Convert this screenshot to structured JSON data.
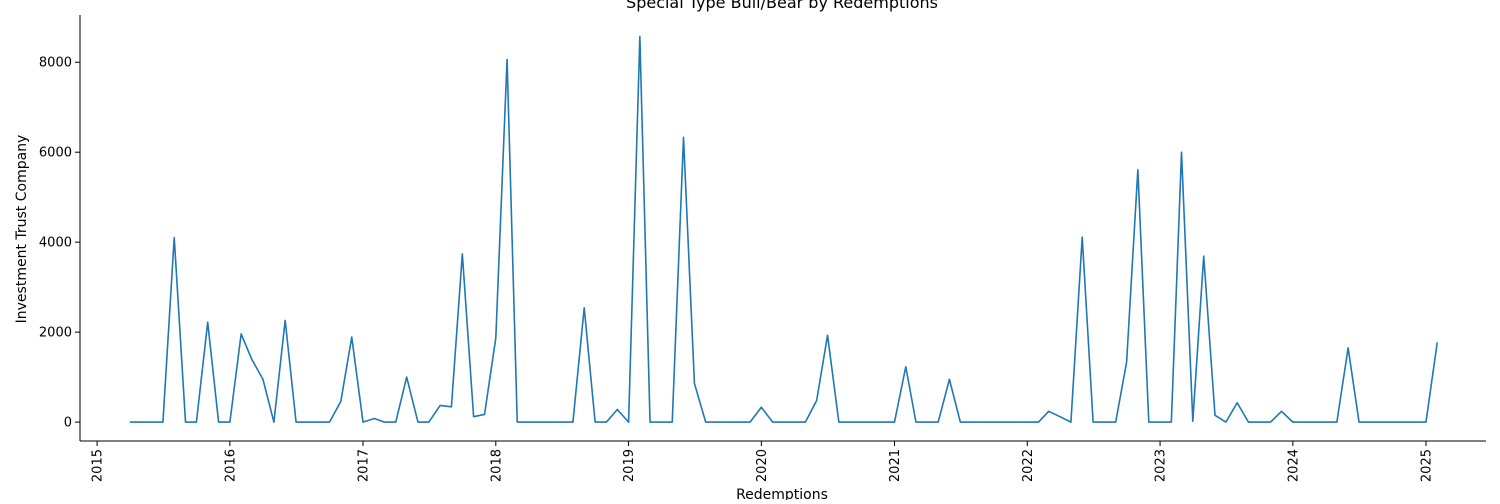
{
  "chart_data": {
    "type": "line",
    "title": "Special Type Bull/Bear by Redemptions",
    "xlabel": "Redemptions",
    "ylabel": "Investment Trust Company",
    "x_range": [
      "2014-11-15",
      "2025-06-15"
    ],
    "ylim": [
      -420,
      9050
    ],
    "x_ticks": [
      "2015",
      "2016",
      "2017",
      "2018",
      "2019",
      "2020",
      "2021",
      "2022",
      "2023",
      "2024",
      "2025"
    ],
    "y_ticks": [
      0,
      2000,
      4000,
      6000,
      8000
    ],
    "grid": false,
    "legend": "none",
    "line_color": "#1f77b4",
    "series": [
      {
        "x": [
          "2015-04-01",
          "2015-05-01",
          "2015-06-01",
          "2015-07-01",
          "2015-08-01",
          "2015-09-01",
          "2015-10-01",
          "2015-11-01",
          "2015-12-01",
          "2016-01-01",
          "2016-02-01",
          "2016-03-01",
          "2016-04-01",
          "2016-05-01",
          "2016-06-01",
          "2016-07-01",
          "2016-08-01",
          "2016-09-01",
          "2016-10-01",
          "2016-11-01",
          "2016-12-01",
          "2017-01-01",
          "2017-02-01",
          "2017-03-01",
          "2017-04-01",
          "2017-05-01",
          "2017-06-01",
          "2017-07-01",
          "2017-08-01",
          "2017-09-01",
          "2017-10-01",
          "2017-11-01",
          "2017-12-01",
          "2018-01-01",
          "2018-02-01",
          "2018-03-01",
          "2018-04-01",
          "2018-05-01",
          "2018-06-01",
          "2018-07-01",
          "2018-08-01",
          "2018-09-01",
          "2018-10-01",
          "2018-11-01",
          "2018-12-01",
          "2019-01-01",
          "2019-02-01",
          "2019-03-01",
          "2019-04-01",
          "2019-05-01",
          "2019-06-01",
          "2019-07-01",
          "2019-08-01",
          "2019-09-01",
          "2019-10-01",
          "2019-11-01",
          "2019-12-01",
          "2020-01-01",
          "2020-02-01",
          "2020-03-01",
          "2020-04-01",
          "2020-05-01",
          "2020-06-01",
          "2020-07-01",
          "2020-08-01",
          "2020-09-01",
          "2020-10-01",
          "2020-11-01",
          "2020-12-01",
          "2021-01-01",
          "2021-02-01",
          "2021-03-01",
          "2021-04-01",
          "2021-05-01",
          "2021-06-01",
          "2021-07-01",
          "2021-08-01",
          "2021-09-01",
          "2021-10-01",
          "2021-11-01",
          "2021-12-01",
          "2022-01-01",
          "2022-02-01",
          "2022-03-01",
          "2022-04-01",
          "2022-05-01",
          "2022-06-01",
          "2022-07-01",
          "2022-08-01",
          "2022-09-01",
          "2022-10-01",
          "2022-11-01",
          "2022-12-01",
          "2023-01-01",
          "2023-02-01",
          "2023-03-01",
          "2023-04-01",
          "2023-05-01",
          "2023-06-01",
          "2023-07-01",
          "2023-08-01",
          "2023-09-01",
          "2023-10-01",
          "2023-11-01",
          "2023-12-01",
          "2024-01-01",
          "2024-02-01",
          "2024-03-01",
          "2024-04-01",
          "2024-05-01",
          "2024-06-01",
          "2024-07-01",
          "2024-08-01",
          "2024-09-01",
          "2024-10-01",
          "2024-11-01",
          "2024-12-01",
          "2025-01-01",
          "2025-02-01"
        ],
        "y": [
          0,
          0,
          0,
          0,
          4100,
          0,
          0,
          2220,
          0,
          0,
          1960,
          1400,
          950,
          0,
          2260,
          0,
          0,
          0,
          0,
          460,
          1890,
          0,
          80,
          0,
          0,
          1000,
          0,
          0,
          370,
          340,
          3740,
          120,
          170,
          1870,
          8060,
          0,
          0,
          0,
          0,
          0,
          0,
          2540,
          0,
          0,
          280,
          0,
          8570,
          0,
          0,
          0,
          6330,
          860,
          0,
          0,
          0,
          0,
          0,
          330,
          0,
          0,
          0,
          0,
          480,
          1930,
          0,
          0,
          0,
          0,
          0,
          0,
          1230,
          0,
          0,
          0,
          950,
          0,
          0,
          0,
          0,
          0,
          0,
          0,
          0,
          240,
          120,
          0,
          4110,
          0,
          0,
          0,
          1330,
          5610,
          0,
          0,
          0,
          6000,
          20,
          3690,
          150,
          0,
          430,
          0,
          0,
          0,
          240,
          0,
          0,
          0,
          0,
          0,
          1650,
          0,
          0,
          0,
          0,
          0,
          0,
          0,
          1770
        ]
      }
    ]
  }
}
